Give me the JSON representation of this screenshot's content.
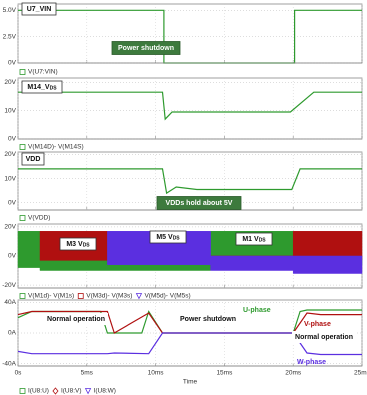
{
  "chart_data": [
    {
      "type": "line",
      "xlim": [
        0,
        25
      ],
      "xticks": [
        0,
        5,
        10,
        15,
        20,
        25
      ],
      "ylim": [
        0,
        5.6
      ],
      "yticks": [
        {
          "value": 0,
          "label": "0V"
        },
        {
          "value": 2.5,
          "label": "2.5V"
        },
        {
          "value": 5,
          "label": "5.0V"
        }
      ],
      "grid": true,
      "series": [
        {
          "name": "V(U7:VIN)",
          "color": "#2e9a2e",
          "x": [
            0,
            10.6,
            10.6,
            20.1,
            20.1,
            25
          ],
          "values": [
            5,
            5,
            0,
            0,
            5,
            5
          ]
        }
      ],
      "annotations": [
        {
          "text": "U7_VIN"
        },
        {
          "text": "Power shutdown"
        }
      ]
    },
    {
      "type": "line",
      "xlim": [
        0,
        25
      ],
      "xticks": [
        0,
        5,
        10,
        15,
        20,
        25
      ],
      "ylim": [
        0,
        21.5
      ],
      "yticks": [
        {
          "value": 0,
          "label": "0V"
        },
        {
          "value": 10,
          "label": "10V"
        },
        {
          "value": 20,
          "label": "20V"
        }
      ],
      "grid": true,
      "series": [
        {
          "name": "V(M14D)- V(M14S)",
          "color": "#2e9a2e",
          "x": [
            0,
            10.5,
            10.7,
            11.2,
            12,
            19.8,
            21.5,
            25
          ],
          "values": [
            16.5,
            16.5,
            7,
            9.5,
            9.5,
            9.5,
            16.5,
            16.5
          ]
        }
      ],
      "annotations": [
        {
          "text": "M14_V",
          "sub": "DS"
        }
      ]
    },
    {
      "type": "line",
      "xlim": [
        0,
        25
      ],
      "xticks": [
        0,
        5,
        10,
        15,
        20,
        25
      ],
      "ylim": [
        -3,
        21
      ],
      "yticks": [
        {
          "value": 0,
          "label": "0V"
        },
        {
          "value": 10,
          "label": "10V"
        },
        {
          "value": 20,
          "label": "20V"
        }
      ],
      "grid": true,
      "series": [
        {
          "name": "V(VDD)",
          "color": "#2e9a2e",
          "x": [
            0,
            10.5,
            10.8,
            11.5,
            13,
            19.9,
            20.5,
            25
          ],
          "values": [
            14,
            14,
            4,
            6.5,
            5.5,
            5.5,
            14,
            14
          ]
        }
      ],
      "annotations": [
        {
          "text": "VDD"
        },
        {
          "text": "VDDs hold about 5V"
        }
      ]
    },
    {
      "type": "band",
      "xlim": [
        0,
        25
      ],
      "xticks": [
        0,
        5,
        10,
        15,
        20,
        25
      ],
      "ylim": [
        -22,
        22
      ],
      "yticks": [
        {
          "value": -20,
          "label": "-20V"
        },
        {
          "value": 0,
          "label": "0V"
        },
        {
          "value": 20,
          "label": "20V"
        }
      ],
      "grid": true,
      "series": [
        {
          "name": "V(M1d)- V(M1s)",
          "color": "#2e9a2e",
          "x": [
            0,
            1.6,
            1.6,
            14,
            14,
            20,
            20,
            25
          ],
          "values": [
            17,
            17,
            0,
            0,
            17,
            17,
            0,
            0
          ],
          "low": [
            -8,
            -8,
            -10,
            -10,
            -8,
            -8,
            -6,
            -6
          ]
        },
        {
          "name": "V(M3d)- V(M3s)",
          "color": "#b01010",
          "x": [
            1.6,
            6.5,
            6.5,
            20,
            20,
            25
          ],
          "values": [
            17,
            17,
            0,
            0,
            17,
            17
          ],
          "low": [
            -3,
            -3,
            0,
            0,
            -3,
            -3
          ]
        },
        {
          "name": "V(M5d)- V(M5s)",
          "color": "#5b2fe0",
          "x": [
            6.5,
            14,
            14,
            20,
            20,
            25
          ],
          "values": [
            17,
            17,
            0,
            0,
            0,
            0
          ],
          "low": [
            -6,
            -6,
            -10,
            -10,
            -12,
            -12
          ]
        }
      ],
      "annotations": [
        {
          "text": "M3 V",
          "sub": "DS"
        },
        {
          "text": "M5 V",
          "sub": "DS"
        },
        {
          "text": "M1 V",
          "sub": "DS"
        }
      ]
    },
    {
      "type": "line",
      "xlim": [
        0,
        25
      ],
      "xticks": [
        {
          "value": 0,
          "label": "0s"
        },
        {
          "value": 5,
          "label": "5ms"
        },
        {
          "value": 10,
          "label": "10ms"
        },
        {
          "value": 15,
          "label": "15ms"
        },
        {
          "value": 20,
          "label": "20ms"
        },
        {
          "value": 25,
          "label": "25ms"
        }
      ],
      "ylim": [
        -43,
        43
      ],
      "yticks": [
        {
          "value": -40,
          "label": "-40A"
        },
        {
          "value": 0,
          "label": "0A"
        },
        {
          "value": 40,
          "label": "40A"
        }
      ],
      "grid": true,
      "xlabel": "Time",
      "series": [
        {
          "name": "I(U8:U)",
          "color": "#2e9a2e",
          "x": [
            0,
            1,
            6,
            6.5,
            9,
            9.5,
            10.5,
            20,
            20.5,
            21,
            25
          ],
          "values": [
            20,
            28,
            28,
            0,
            0,
            28,
            0,
            0,
            28,
            30,
            30
          ]
        },
        {
          "name": "I(U8:V)",
          "color": "#b01010",
          "x": [
            0,
            1,
            6.5,
            7,
            9.5,
            10.5,
            20,
            21,
            22,
            25
          ],
          "values": [
            24,
            28,
            28,
            0,
            26,
            0,
            0,
            26,
            24,
            24
          ]
        },
        {
          "name": "I(U8:W)",
          "color": "#5b2fe0",
          "x": [
            0,
            1,
            6.5,
            7,
            9.5,
            10.5,
            20,
            21,
            22,
            25
          ],
          "values": [
            -24,
            -27,
            -27,
            -26,
            -27,
            0,
            0,
            -26,
            -28,
            -28
          ]
        }
      ],
      "annotations": [
        {
          "text": "Normal operation"
        },
        {
          "text": "Power shutdown"
        },
        {
          "text": "U-phase"
        },
        {
          "text": "V-phase"
        },
        {
          "text": "Normal operation"
        },
        {
          "text": "W-phase"
        }
      ]
    }
  ]
}
